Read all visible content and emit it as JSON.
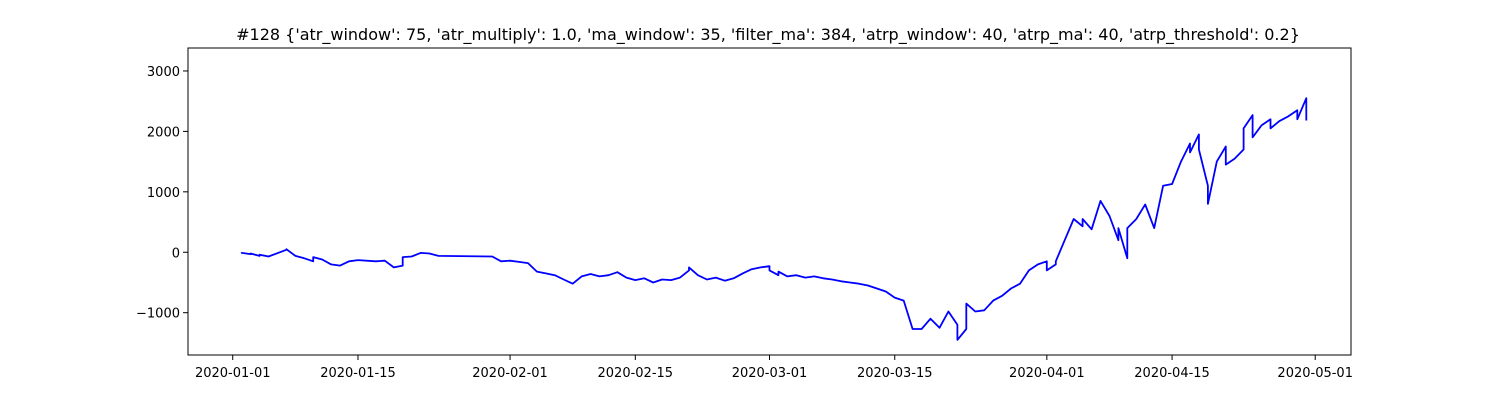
{
  "chart_data": {
    "type": "line",
    "title": "#128 {'atr_window': 75, 'atr_multiply': 1.0, 'ma_window': 35, 'filter_ma': 384, 'atrp_window': 40, 'atrp_ma': 40, 'atrp_threshold': 0.2}",
    "xlabel": "",
    "ylabel": "",
    "xlim": [
      "2019-12-27",
      "2020-05-05"
    ],
    "ylim": [
      -1700,
      3380
    ],
    "x_ticks": [
      "2020-01-01",
      "2020-01-15",
      "2020-02-01",
      "2020-02-15",
      "2020-03-01",
      "2020-03-15",
      "2020-04-01",
      "2020-04-15",
      "2020-05-01"
    ],
    "y_ticks": [
      {
        "value": -1000,
        "label": "−1000"
      },
      {
        "value": 0,
        "label": "0"
      },
      {
        "value": 1000,
        "label": "1000"
      },
      {
        "value": 2000,
        "label": "2000"
      },
      {
        "value": 3000,
        "label": "3000"
      }
    ],
    "grid": false,
    "series": [
      {
        "color": "#0000ff",
        "points": [
          [
            "2020-01-02",
            0
          ],
          [
            "2020-01-02",
            -10
          ],
          [
            "2020-01-03",
            -30
          ],
          [
            "2020-01-03",
            -20
          ],
          [
            "2020-01-04",
            -60
          ],
          [
            "2020-01-04",
            -40
          ],
          [
            "2020-01-05",
            -70
          ],
          [
            "2020-01-07",
            40
          ],
          [
            "2020-01-07",
            50
          ],
          [
            "2020-01-08",
            -60
          ],
          [
            "2020-01-09",
            -100
          ],
          [
            "2020-01-10",
            -150
          ],
          [
            "2020-01-10",
            -80
          ],
          [
            "2020-01-11",
            -120
          ],
          [
            "2020-01-12",
            -200
          ],
          [
            "2020-01-13",
            -220
          ],
          [
            "2020-01-14",
            -150
          ],
          [
            "2020-01-15",
            -130
          ],
          [
            "2020-01-17",
            -150
          ],
          [
            "2020-01-18",
            -140
          ],
          [
            "2020-01-19",
            -250
          ],
          [
            "2020-01-20",
            -220
          ],
          [
            "2020-01-20",
            -80
          ],
          [
            "2020-01-21",
            -70
          ],
          [
            "2020-01-22",
            -10
          ],
          [
            "2020-01-23",
            -20
          ],
          [
            "2020-01-24",
            -60
          ],
          [
            "2020-01-30",
            -70
          ],
          [
            "2020-01-31",
            -150
          ],
          [
            "2020-02-01",
            -140
          ],
          [
            "2020-02-02",
            -160
          ],
          [
            "2020-02-03",
            -180
          ],
          [
            "2020-02-04",
            -320
          ],
          [
            "2020-02-05",
            -350
          ],
          [
            "2020-02-06",
            -380
          ],
          [
            "2020-02-07",
            -450
          ],
          [
            "2020-02-08",
            -520
          ],
          [
            "2020-02-09",
            -400
          ],
          [
            "2020-02-10",
            -360
          ],
          [
            "2020-02-11",
            -400
          ],
          [
            "2020-02-12",
            -380
          ],
          [
            "2020-02-13",
            -330
          ],
          [
            "2020-02-14",
            -420
          ],
          [
            "2020-02-15",
            -460
          ],
          [
            "2020-02-16",
            -430
          ],
          [
            "2020-02-17",
            -500
          ],
          [
            "2020-02-18",
            -450
          ],
          [
            "2020-02-19",
            -460
          ],
          [
            "2020-02-20",
            -420
          ],
          [
            "2020-02-21",
            -300
          ],
          [
            "2020-02-21",
            -250
          ],
          [
            "2020-02-22",
            -380
          ],
          [
            "2020-02-23",
            -450
          ],
          [
            "2020-02-24",
            -420
          ],
          [
            "2020-02-25",
            -470
          ],
          [
            "2020-02-26",
            -430
          ],
          [
            "2020-02-27",
            -350
          ],
          [
            "2020-02-28",
            -280
          ],
          [
            "2020-02-29",
            -250
          ],
          [
            "2020-03-01",
            -230
          ],
          [
            "2020-03-01",
            -300
          ],
          [
            "2020-03-02",
            -380
          ],
          [
            "2020-03-02",
            -320
          ],
          [
            "2020-03-03",
            -400
          ],
          [
            "2020-03-04",
            -380
          ],
          [
            "2020-03-05",
            -420
          ],
          [
            "2020-03-06",
            -400
          ],
          [
            "2020-03-07",
            -430
          ],
          [
            "2020-03-08",
            -450
          ],
          [
            "2020-03-09",
            -480
          ],
          [
            "2020-03-10",
            -500
          ],
          [
            "2020-03-11",
            -520
          ],
          [
            "2020-03-12",
            -550
          ],
          [
            "2020-03-13",
            -600
          ],
          [
            "2020-03-14",
            -650
          ],
          [
            "2020-03-15",
            -750
          ],
          [
            "2020-03-16",
            -800
          ],
          [
            "2020-03-17",
            -1270
          ],
          [
            "2020-03-18",
            -1270
          ],
          [
            "2020-03-19",
            -1100
          ],
          [
            "2020-03-20",
            -1250
          ],
          [
            "2020-03-21",
            -980
          ],
          [
            "2020-03-22",
            -1200
          ],
          [
            "2020-03-22",
            -1450
          ],
          [
            "2020-03-23",
            -1270
          ],
          [
            "2020-03-23",
            -850
          ],
          [
            "2020-03-24",
            -980
          ],
          [
            "2020-03-25",
            -960
          ],
          [
            "2020-03-26",
            -800
          ],
          [
            "2020-03-27",
            -720
          ],
          [
            "2020-03-28",
            -600
          ],
          [
            "2020-03-29",
            -520
          ],
          [
            "2020-03-30",
            -300
          ],
          [
            "2020-03-31",
            -200
          ],
          [
            "2020-04-01",
            -150
          ],
          [
            "2020-04-01",
            -300
          ],
          [
            "2020-04-02",
            -200
          ],
          [
            "2020-04-02",
            -150
          ],
          [
            "2020-04-03",
            200
          ],
          [
            "2020-04-04",
            550
          ],
          [
            "2020-04-05",
            430
          ],
          [
            "2020-04-05",
            550
          ],
          [
            "2020-04-06",
            380
          ],
          [
            "2020-04-07",
            850
          ],
          [
            "2020-04-08",
            600
          ],
          [
            "2020-04-09",
            200
          ],
          [
            "2020-04-09",
            400
          ],
          [
            "2020-04-10",
            -100
          ],
          [
            "2020-04-10",
            400
          ],
          [
            "2020-04-11",
            550
          ],
          [
            "2020-04-12",
            790
          ],
          [
            "2020-04-13",
            400
          ],
          [
            "2020-04-14",
            1100
          ],
          [
            "2020-04-15",
            1130
          ],
          [
            "2020-04-16",
            1500
          ],
          [
            "2020-04-17",
            1800
          ],
          [
            "2020-04-17",
            1650
          ],
          [
            "2020-04-18",
            1950
          ],
          [
            "2020-04-18",
            1700
          ],
          [
            "2020-04-19",
            1100
          ],
          [
            "2020-04-19",
            800
          ],
          [
            "2020-04-20",
            1500
          ],
          [
            "2020-04-21",
            1750
          ],
          [
            "2020-04-21",
            1450
          ],
          [
            "2020-04-22",
            1550
          ],
          [
            "2020-04-23",
            1700
          ],
          [
            "2020-04-23",
            2050
          ],
          [
            "2020-04-24",
            2270
          ],
          [
            "2020-04-24",
            1900
          ],
          [
            "2020-04-25",
            2100
          ],
          [
            "2020-04-26",
            2200
          ],
          [
            "2020-04-26",
            2050
          ],
          [
            "2020-04-27",
            2170
          ],
          [
            "2020-04-28",
            2250
          ],
          [
            "2020-04-29",
            2350
          ],
          [
            "2020-04-29",
            2200
          ],
          [
            "2020-04-30",
            2550
          ],
          [
            "2020-04-30",
            2180
          ]
        ]
      }
    ]
  }
}
